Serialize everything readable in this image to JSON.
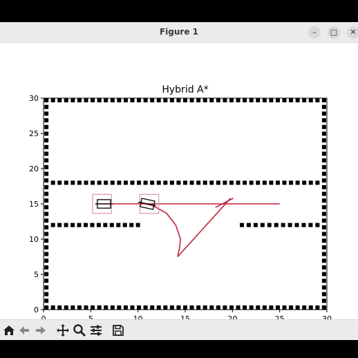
{
  "window": {
    "title": "Figure 1",
    "controls": {
      "minimize": "–",
      "maximize": "□",
      "close": "✕"
    }
  },
  "chart_data": {
    "type": "line",
    "title": "Hybrid A*",
    "xlim": [
      0,
      30
    ],
    "ylim": [
      0,
      30
    ],
    "xticks": [
      0,
      5,
      10,
      15,
      20,
      25,
      30
    ],
    "yticks": [
      0,
      5,
      10,
      15,
      20,
      25,
      30
    ],
    "grid": false,
    "obstacles": {
      "color": "#000000",
      "spacing": 0.7,
      "segments": [
        {
          "x0": 0.3,
          "y0": 0.3,
          "x1": 29.7,
          "y1": 0.3
        },
        {
          "x0": 0.3,
          "y0": 29.7,
          "x1": 29.7,
          "y1": 29.7
        },
        {
          "x0": 0.3,
          "y0": 0.3,
          "x1": 0.3,
          "y1": 29.7
        },
        {
          "x0": 29.7,
          "y0": 0.3,
          "x1": 29.7,
          "y1": 29.7
        },
        {
          "x0": 1,
          "y0": 18,
          "x1": 29,
          "y1": 18
        },
        {
          "x0": 1,
          "y0": 12,
          "x1": 10,
          "y1": 12
        },
        {
          "x0": 21,
          "y0": 12,
          "x1": 29,
          "y1": 12
        }
      ]
    },
    "paths": [
      {
        "color": "#c0203a",
        "points": [
          [
            5.5,
            15
          ],
          [
            25,
            15
          ]
        ]
      },
      {
        "color": "#c0203a",
        "points": [
          [
            10,
            15.2
          ],
          [
            11.5,
            14.8
          ],
          [
            13,
            13.7
          ],
          [
            14,
            12
          ],
          [
            14.5,
            10
          ],
          [
            14.4,
            8.8
          ],
          [
            14.2,
            7.5
          ]
        ]
      },
      {
        "color": "#c0203a",
        "points": [
          [
            14.2,
            7.5
          ],
          [
            19.8,
            15.8
          ]
        ]
      },
      {
        "color": "#c0203a",
        "points": [
          [
            18.2,
            14.5
          ],
          [
            20.1,
            15.8
          ]
        ]
      }
    ],
    "vehicles": [
      {
        "x": 6.4,
        "y": 15,
        "angle": 0,
        "length": 1.4,
        "width": 0.9
      },
      {
        "x": 11.0,
        "y": 15,
        "angle": -12,
        "length": 1.4,
        "width": 0.9
      }
    ],
    "vehicle_boxes": [
      {
        "x": 6.2,
        "y": 15,
        "w": 2.0,
        "h": 2.0
      },
      {
        "x": 11.2,
        "y": 15,
        "w": 2.0,
        "h": 2.0
      }
    ],
    "vehicle_color": "#000000",
    "box_color": "#d49aa6"
  },
  "toolbar": {
    "icons": [
      "home-icon",
      "back-arrow-icon",
      "forward-arrow-icon",
      "pan-icon",
      "zoom-icon",
      "configure-icon",
      "save-icon"
    ]
  }
}
